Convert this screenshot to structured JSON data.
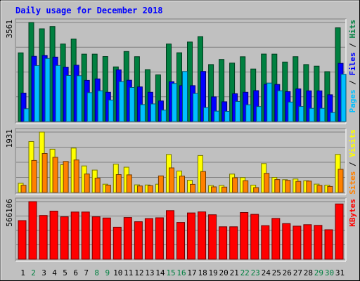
{
  "chart_data": {
    "type": "bar",
    "title": "Daily usage for December 2018",
    "days": [
      "1",
      "2",
      "3",
      "4",
      "5",
      "6",
      "7",
      "8",
      "9",
      "10",
      "11",
      "12",
      "13",
      "14",
      "15",
      "16",
      "17",
      "18",
      "19",
      "20",
      "21",
      "22",
      "23",
      "24",
      "25",
      "26",
      "27",
      "28",
      "29",
      "30",
      "31"
    ],
    "weekend_days": [
      "2",
      "8",
      "9",
      "15",
      "16",
      "22",
      "23",
      "29",
      "30"
    ],
    "panels": [
      {
        "key": "hits",
        "axis_max_label": "3561",
        "axis_max": 3561,
        "right_labels": [
          "Pages",
          "Files",
          "Hits"
        ],
        "series": [
          {
            "name": "Hits",
            "color": "#008040",
            "values": [
              2470,
              3561,
              3333,
              3418,
              2788,
              2967,
              2421,
              2421,
              2336,
              1966,
              2518,
              2331,
              1867,
              1677,
              2788,
              2473,
              2859,
              3054,
              2049,
              2231,
              2100,
              2328,
              1890,
              2424,
              2421,
              2140,
              2331,
              2049,
              1990,
              1793,
              3370
            ]
          },
          {
            "name": "Files",
            "color": "#0000ff",
            "values": [
              1023,
              2344,
              2377,
              2317,
              1956,
              2025,
              1480,
              1533,
              1052,
              1859,
              1484,
              1244,
              1053,
              740,
              1433,
              1290,
              1290,
              1800,
              886,
              710,
              1001,
              1054,
              1110,
              1339,
              1333,
              1076,
              1175,
              1103,
              1103,
              963,
              2090
            ]
          },
          {
            "name": "Pages",
            "color": "#00bfff",
            "values": [
              460,
              2008,
              2265,
              2014,
              1655,
              1646,
              1038,
              1106,
              772,
              1434,
              1224,
              608,
              633,
              408,
              1368,
              1798,
              1007,
              503,
              375,
              367,
              723,
              603,
              538,
              1384,
              1107,
              700,
              540,
              474,
              474,
              324,
              1700
            ]
          }
        ]
      },
      {
        "key": "visits",
        "axis_max_label": "1931",
        "axis_max": 1931,
        "right_labels": [
          "Sites",
          "Visits"
        ],
        "series": [
          {
            "name": "Visits",
            "color": "#ffff00",
            "values": [
              294,
              1628,
              1931,
              1384,
              888,
              1420,
              849,
              716,
              265,
              904,
              809,
              244,
              240,
              264,
              1215,
              687,
              391,
              1180,
              223,
              224,
              588,
              479,
              236,
              926,
              483,
              409,
              431,
              375,
              268,
              235,
              1217
            ]
          },
          {
            "name": "Sites",
            "color": "#ff8000",
            "values": [
              232,
              1024,
              1246,
              1125,
              993,
              1039,
              590,
              460,
              236,
              573,
              564,
              209,
              216,
              531,
              785,
              523,
              260,
              670,
              180,
              173,
              471,
              378,
              157,
              610,
              413,
              389,
              354,
              364,
              227,
              192,
              742
            ]
          }
        ]
      },
      {
        "key": "kbytes",
        "axis_max_label": "566106",
        "axis_max": 566106,
        "right_labels": [
          "KBytes"
        ],
        "series": [
          {
            "name": "KBytes",
            "color": "#ff0000",
            "values": [
              380000,
              566106,
              430000,
              473000,
              417000,
              464000,
              464000,
              417000,
              405000,
              315000,
              410000,
              369000,
              400000,
              407000,
              478000,
              362000,
              455000,
              465000,
              437000,
              319000,
              319000,
              459000,
              441000,
              330000,
              401000,
              350000,
              325000,
              340000,
              333000,
              290000,
              543000
            ]
          }
        ]
      }
    ]
  }
}
